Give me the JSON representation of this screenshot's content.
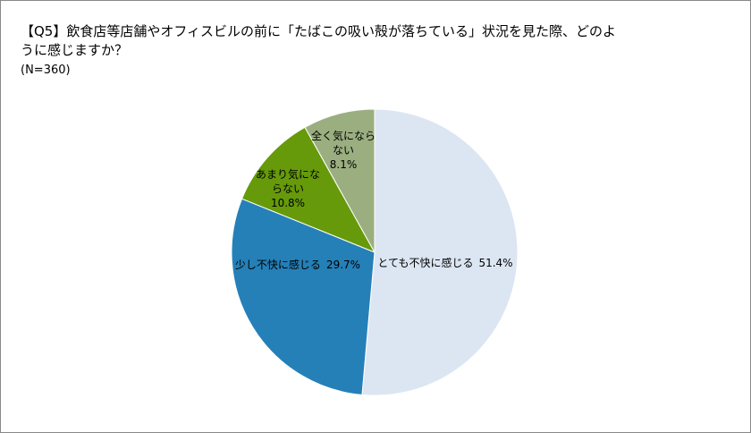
{
  "chart_data": {
    "type": "pie",
    "title": "【Q5】飲食店等店舗やオフィスビルの前に「たばこの吸い殻が落ちている」状況を見た際、どのように感じますか？",
    "subtitle": "(N=360)",
    "categories": [
      "とても不快に感じる",
      "少し不快に感じる",
      "あまり気にならない",
      "全く気にならない"
    ],
    "values": [
      51.4,
      29.7,
      10.8,
      8.1
    ],
    "value_labels": [
      "51.4%",
      "29.7%",
      "10.8%",
      "8.1%"
    ],
    "colors": [
      "#dce6f2",
      "#2580b8",
      "#669a0a",
      "#9bae80"
    ]
  }
}
